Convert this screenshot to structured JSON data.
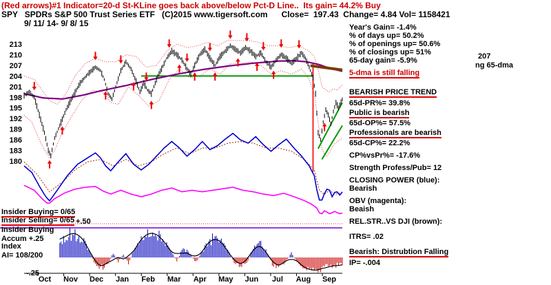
{
  "header": {
    "line1": "(Red arrows)#1 Indicator=20-d St-KLine goes back above/below Pct-D Line..  Its gain= 44.2% Buy",
    "line2": "SPY   SPDRs S&P 500 Trust Series ETF   (C)2015 www.tigersoft.com      Close=  197.43  Change= 4.84 Vol= 1158421",
    "line3": "9/ 11/ 14- 9/ 8/ 15"
  },
  "left_labels": {
    "insider_buying": "Insider Buying= 0/65",
    "insider_selling": "Insider Selling= 0/65",
    "accum_title1": "Insider Buying",
    "accum_title2": "Accum +.25",
    "accum_title3": "Index",
    "ai": "AI= 108/200",
    "scale_plus": "+.50",
    "scale_minus": "-.25"
  },
  "right_panel": {
    "years_gain": "Year's Gain= -1.4%",
    "days_up": "% of days up= 50.2%",
    "openings_up": "% of openings up= 50.6%",
    "closings_up": "% of closings up= 51%",
    "gain65": "65-day gain= -5.9%",
    "dma5": "5-dma is still falling",
    "price207": "207",
    "ng65": "ng 65-dma",
    "bearish_trend": "BEARISH PRICE TREND",
    "pr65": "65d-PR%= 39.8%",
    "public_bearish": "Public is bearish",
    "op65": "65d-OP%= 57.5%",
    "prof_bearish": "Professionals are bearish",
    "cp65": "65d-CP%= 22.2%",
    "cpvspr": "CP%vsPr%= -17.6%",
    "strength": "Strength Profess/Pub= 12",
    "cp_title": "CLOSING POWER (blue):",
    "cp_state": "Bearish",
    "obv_title": "OBV (magenta):",
    "obv_state": "Beaish",
    "rel_title": "REL.STR..VS DJI (brown):",
    "itrs": "ITRS= .02",
    "distribution": "Bearish: Distrubtion Falling",
    "ip": "IP= -.004"
  },
  "chart_data": {
    "type": "line",
    "subtype": "stock-multi-panel-daily",
    "symbol": "SPY",
    "title": "SPDRs S&P 500 Trust Series ETF",
    "date_range": "9/11/14 - 9/8/15",
    "close": 197.43,
    "change": 4.84,
    "volume": 1158421,
    "x_months": [
      "Oct",
      "Nov",
      "Dec",
      "Jan",
      "Feb",
      "Mar",
      "Apr",
      "May",
      "Jun",
      "Jul",
      "Aug",
      "Sep"
    ],
    "price_ticks": [
      213,
      210,
      207,
      204,
      201,
      198,
      195,
      192,
      189,
      186,
      183,
      180
    ],
    "ylim": [
      178,
      215
    ],
    "days_total": 250,
    "ai_start_day": 28,
    "close_waypoints": [
      [
        0,
        198.5
      ],
      [
        4,
        199.5
      ],
      [
        8,
        198
      ],
      [
        12,
        193
      ],
      [
        16,
        188
      ],
      [
        19,
        183
      ],
      [
        21,
        181.5
      ],
      [
        24,
        186.5
      ],
      [
        28,
        190
      ],
      [
        33,
        194.5
      ],
      [
        38,
        198
      ],
      [
        44,
        202
      ],
      [
        50,
        204.5
      ],
      [
        56,
        206.5
      ],
      [
        60,
        205.5
      ],
      [
        63,
        203
      ],
      [
        66,
        199
      ],
      [
        69,
        197.5
      ],
      [
        72,
        201
      ],
      [
        76,
        205.5
      ],
      [
        80,
        208
      ],
      [
        84,
        206
      ],
      [
        88,
        202.5
      ],
      [
        91,
        199.5
      ],
      [
        94,
        202
      ],
      [
        97,
        200
      ],
      [
        100,
        199
      ],
      [
        102,
        201
      ],
      [
        105,
        204
      ],
      [
        108,
        206
      ],
      [
        112,
        209
      ],
      [
        116,
        211
      ],
      [
        120,
        210
      ],
      [
        124,
        208.5
      ],
      [
        128,
        206
      ],
      [
        131,
        204.5
      ],
      [
        134,
        207
      ],
      [
        138,
        210
      ],
      [
        142,
        211.5
      ],
      [
        146,
        209
      ],
      [
        150,
        207
      ],
      [
        154,
        209.5
      ],
      [
        158,
        211
      ],
      [
        162,
        212.5
      ],
      [
        166,
        211.5
      ],
      [
        170,
        210.5
      ],
      [
        174,
        212
      ],
      [
        178,
        211
      ],
      [
        182,
        209.5
      ],
      [
        186,
        210.5
      ],
      [
        190,
        208
      ],
      [
        194,
        206.5
      ],
      [
        198,
        208.5
      ],
      [
        202,
        210
      ],
      [
        206,
        209
      ],
      [
        210,
        207.5
      ],
      [
        214,
        209
      ],
      [
        218,
        210.5
      ],
      [
        221,
        209
      ],
      [
        224,
        206.5
      ],
      [
        227,
        203.5
      ],
      [
        229,
        199
      ],
      [
        231,
        188
      ],
      [
        233,
        186
      ],
      [
        235,
        191
      ],
      [
        237,
        194.5
      ],
      [
        239,
        193
      ],
      [
        241,
        190.5
      ],
      [
        243,
        194
      ],
      [
        245,
        196.5
      ],
      [
        247,
        195
      ],
      [
        250,
        197.4
      ]
    ],
    "dma65_waypoints": [
      [
        0,
        199
      ],
      [
        15,
        197.8
      ],
      [
        30,
        197.5
      ],
      [
        45,
        198.5
      ],
      [
        60,
        199.8
      ],
      [
        80,
        201.3
      ],
      [
        100,
        203
      ],
      [
        120,
        204.5
      ],
      [
        140,
        205.8
      ],
      [
        160,
        206.8
      ],
      [
        180,
        207.6
      ],
      [
        200,
        208.2
      ],
      [
        212,
        208.3
      ],
      [
        222,
        208
      ],
      [
        232,
        207.2
      ],
      [
        240,
        206.2
      ],
      [
        250,
        205.3
      ]
    ],
    "upper_band": [
      [
        0,
        204
      ],
      [
        8,
        203
      ],
      [
        14,
        200
      ],
      [
        20,
        197
      ],
      [
        26,
        196
      ],
      [
        33,
        199
      ],
      [
        40,
        204
      ],
      [
        48,
        207.5
      ],
      [
        56,
        209
      ],
      [
        64,
        208
      ],
      [
        72,
        208
      ],
      [
        80,
        210
      ],
      [
        88,
        209.5
      ],
      [
        96,
        206.5
      ],
      [
        104,
        207
      ],
      [
        112,
        211
      ],
      [
        120,
        213
      ],
      [
        128,
        212
      ],
      [
        136,
        212.5
      ],
      [
        144,
        213.5
      ],
      [
        152,
        212.5
      ],
      [
        160,
        214
      ],
      [
        168,
        214
      ],
      [
        176,
        214
      ],
      [
        184,
        213.5
      ],
      [
        192,
        212.5
      ],
      [
        200,
        212.5
      ],
      [
        208,
        212
      ],
      [
        216,
        212.5
      ],
      [
        224,
        211
      ],
      [
        228,
        209.5
      ],
      [
        231,
        206
      ],
      [
        234,
        201
      ],
      [
        237,
        200
      ],
      [
        240,
        199.5
      ],
      [
        243,
        200.5
      ],
      [
        246,
        200
      ],
      [
        250,
        201.5
      ]
    ],
    "lower_band": [
      [
        0,
        193
      ],
      [
        6,
        191
      ],
      [
        12,
        186
      ],
      [
        17,
        182.5
      ],
      [
        20,
        181
      ],
      [
        24,
        183
      ],
      [
        30,
        188
      ],
      [
        38,
        193
      ],
      [
        46,
        197.5
      ],
      [
        54,
        200
      ],
      [
        62,
        199.5
      ],
      [
        68,
        196.5
      ],
      [
        74,
        196
      ],
      [
        82,
        201
      ],
      [
        90,
        198.5
      ],
      [
        98,
        195.5
      ],
      [
        106,
        197
      ],
      [
        114,
        203
      ],
      [
        122,
        206
      ],
      [
        130,
        203.5
      ],
      [
        138,
        204
      ],
      [
        146,
        206
      ],
      [
        154,
        204.5
      ],
      [
        162,
        207.5
      ],
      [
        170,
        207.5
      ],
      [
        178,
        208
      ],
      [
        186,
        207
      ],
      [
        194,
        204.5
      ],
      [
        202,
        205.5
      ],
      [
        210,
        204.5
      ],
      [
        218,
        206
      ],
      [
        224,
        203
      ],
      [
        228,
        199
      ],
      [
        231,
        191
      ],
      [
        234,
        183.5
      ],
      [
        237,
        181
      ],
      [
        240,
        182.5
      ],
      [
        243,
        184.5
      ],
      [
        246,
        185.5
      ],
      [
        250,
        186.5
      ]
    ],
    "closing_power": [
      [
        0,
        0.5
      ],
      [
        6,
        0.42
      ],
      [
        12,
        0.25
      ],
      [
        17,
        0.12
      ],
      [
        20,
        0.07
      ],
      [
        26,
        0.2
      ],
      [
        34,
        0.38
      ],
      [
        42,
        0.52
      ],
      [
        50,
        0.6
      ],
      [
        56,
        0.66
      ],
      [
        60,
        0.6
      ],
      [
        64,
        0.5
      ],
      [
        68,
        0.44
      ],
      [
        74,
        0.55
      ],
      [
        80,
        0.65
      ],
      [
        86,
        0.52
      ],
      [
        92,
        0.45
      ],
      [
        98,
        0.52
      ],
      [
        104,
        0.62
      ],
      [
        110,
        0.72
      ],
      [
        116,
        0.8
      ],
      [
        122,
        0.72
      ],
      [
        128,
        0.62
      ],
      [
        134,
        0.7
      ],
      [
        140,
        0.8
      ],
      [
        146,
        0.7
      ],
      [
        152,
        0.75
      ],
      [
        158,
        0.83
      ],
      [
        164,
        0.9
      ],
      [
        170,
        0.82
      ],
      [
        176,
        0.78
      ],
      [
        182,
        0.86
      ],
      [
        188,
        0.76
      ],
      [
        194,
        0.68
      ],
      [
        200,
        0.76
      ],
      [
        206,
        0.83
      ],
      [
        212,
        0.72
      ],
      [
        218,
        0.62
      ],
      [
        224,
        0.5
      ],
      [
        228,
        0.38
      ],
      [
        231,
        0.12
      ],
      [
        233,
        0.04
      ],
      [
        236,
        0.16
      ],
      [
        239,
        0.24
      ],
      [
        242,
        0.12
      ],
      [
        245,
        0.2
      ],
      [
        248,
        0.14
      ],
      [
        250,
        0.18
      ]
    ],
    "obv": [
      [
        0,
        0.85
      ],
      [
        8,
        0.72
      ],
      [
        14,
        0.5
      ],
      [
        19,
        0.35
      ],
      [
        24,
        0.5
      ],
      [
        32,
        0.65
      ],
      [
        40,
        0.75
      ],
      [
        48,
        0.8
      ],
      [
        56,
        0.82
      ],
      [
        62,
        0.7
      ],
      [
        68,
        0.62
      ],
      [
        76,
        0.72
      ],
      [
        84,
        0.62
      ],
      [
        92,
        0.55
      ],
      [
        100,
        0.62
      ],
      [
        108,
        0.72
      ],
      [
        116,
        0.78
      ],
      [
        124,
        0.68
      ],
      [
        132,
        0.72
      ],
      [
        140,
        0.68
      ],
      [
        148,
        0.72
      ],
      [
        156,
        0.76
      ],
      [
        164,
        0.8
      ],
      [
        172,
        0.72
      ],
      [
        180,
        0.68
      ],
      [
        188,
        0.62
      ],
      [
        196,
        0.58
      ],
      [
        204,
        0.64
      ],
      [
        212,
        0.55
      ],
      [
        220,
        0.45
      ],
      [
        226,
        0.35
      ],
      [
        230,
        0.25
      ],
      [
        233,
        0.06
      ],
      [
        236,
        0.18
      ],
      [
        240,
        0.1
      ],
      [
        244,
        0.16
      ],
      [
        248,
        0.1
      ],
      [
        250,
        0.12
      ]
    ],
    "rel_strength": [
      [
        0,
        0.55
      ],
      [
        10,
        0.4
      ],
      [
        20,
        0.18
      ],
      [
        30,
        0.3
      ],
      [
        40,
        0.45
      ],
      [
        50,
        0.55
      ],
      [
        60,
        0.58
      ],
      [
        70,
        0.5
      ],
      [
        80,
        0.58
      ],
      [
        90,
        0.5
      ],
      [
        100,
        0.55
      ],
      [
        110,
        0.65
      ],
      [
        120,
        0.72
      ],
      [
        130,
        0.65
      ],
      [
        140,
        0.72
      ],
      [
        150,
        0.72
      ],
      [
        160,
        0.78
      ],
      [
        170,
        0.8
      ],
      [
        180,
        0.78
      ],
      [
        190,
        0.72
      ],
      [
        200,
        0.72
      ],
      [
        210,
        0.68
      ],
      [
        220,
        0.58
      ],
      [
        228,
        0.45
      ],
      [
        232,
        0.2
      ],
      [
        236,
        0.15
      ],
      [
        240,
        0.2
      ],
      [
        244,
        0.15
      ],
      [
        250,
        0.17
      ]
    ],
    "accum_index": [
      [
        0,
        -0.05
      ],
      [
        5,
        0.1
      ],
      [
        10,
        -0.1
      ],
      [
        15,
        -0.15
      ],
      [
        20,
        0.15
      ],
      [
        25,
        0.25
      ],
      [
        30,
        0.32
      ],
      [
        35,
        0.42
      ],
      [
        40,
        0.45
      ],
      [
        45,
        0.38
      ],
      [
        50,
        0.2
      ],
      [
        55,
        -0.08
      ],
      [
        58,
        -0.15
      ],
      [
        62,
        -0.2
      ],
      [
        66,
        -0.12
      ],
      [
        70,
        0.08
      ],
      [
        74,
        -0.08
      ],
      [
        78,
        0.05
      ],
      [
        82,
        -0.1
      ],
      [
        86,
        0.12
      ],
      [
        90,
        0.28
      ],
      [
        95,
        0.4
      ],
      [
        100,
        0.45
      ],
      [
        105,
        0.42
      ],
      [
        110,
        0.28
      ],
      [
        115,
        0.12
      ],
      [
        120,
        -0.06
      ],
      [
        125,
        0.18
      ],
      [
        130,
        0.08
      ],
      [
        135,
        -0.1
      ],
      [
        140,
        0.12
      ],
      [
        145,
        0.28
      ],
      [
        150,
        0.38
      ],
      [
        155,
        0.28
      ],
      [
        160,
        0.12
      ],
      [
        165,
        -0.08
      ],
      [
        170,
        -0.15
      ],
      [
        175,
        -0.1
      ],
      [
        180,
        0.18
      ],
      [
        185,
        0.28
      ],
      [
        190,
        0.12
      ],
      [
        195,
        -0.12
      ],
      [
        200,
        -0.18
      ],
      [
        205,
        -0.1
      ],
      [
        210,
        0.08
      ],
      [
        215,
        -0.1
      ],
      [
        220,
        -0.18
      ],
      [
        225,
        -0.22
      ],
      [
        230,
        -0.24
      ],
      [
        235,
        -0.2
      ],
      [
        238,
        -0.12
      ],
      [
        242,
        -0.18
      ],
      [
        245,
        -0.15
      ],
      [
        248,
        -0.12
      ],
      [
        250,
        -0.12
      ]
    ],
    "sell_arrow_days": [
      8,
      56,
      76,
      96,
      114,
      128,
      146,
      162,
      175,
      188,
      202,
      216
    ],
    "buy_arrow_days": [
      20,
      30,
      64,
      86,
      100,
      122,
      134,
      150,
      168,
      183,
      196,
      236
    ],
    "support_line": {
      "price": 204,
      "from_day": 92,
      "to_day": 227
    },
    "wedge_lines": [
      {
        "from": [
          231,
          183.5
        ],
        "to": [
          250,
          196.5
        ]
      },
      {
        "from": [
          234,
          180.5
        ],
        "to": [
          250,
          190.0
        ]
      }
    ],
    "falling_dma_segment": {
      "from_day": 225,
      "from_price": 206.9,
      "to_day": 250,
      "to_price": 205.7
    },
    "crash_line": {
      "day": 227,
      "from_price": 207.5,
      "to_price": 177
    },
    "ai_scale": {
      "plus_level": 0.5,
      "minus_level": -0.25
    },
    "colors": {
      "band": "#dd2222",
      "support": "#009900",
      "dma": "#800080",
      "brown": "#7a3a00",
      "brown2": "#aa2200",
      "cp": "#0000cc",
      "obv": "#ff00ff",
      "divider": "#7000d0",
      "ai_up": "#0000bb",
      "ai_down": "#cc0000",
      "arrow": "#ee0000",
      "headline": "#cc0000"
    }
  }
}
